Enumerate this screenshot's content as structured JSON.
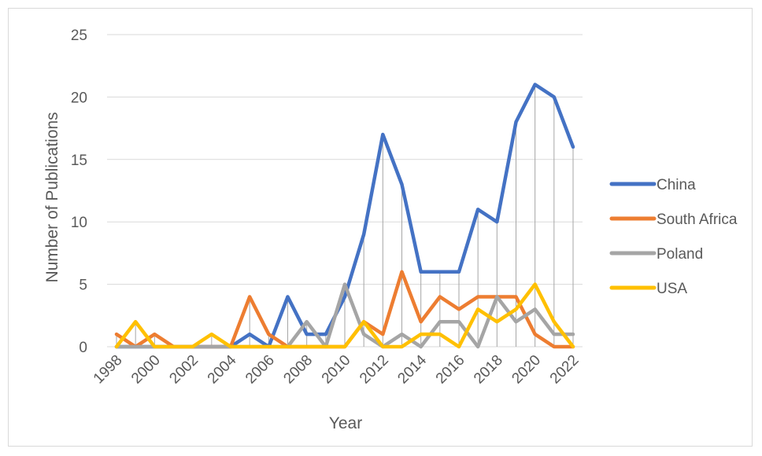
{
  "chart_data": {
    "type": "line",
    "title": "",
    "xlabel": "Year",
    "ylabel": "Number of Publications",
    "ylim": [
      0,
      25
    ],
    "yticks": [
      0,
      5,
      10,
      15,
      20,
      25
    ],
    "x": [
      1998,
      1999,
      2000,
      2001,
      2002,
      2003,
      2004,
      2005,
      2006,
      2007,
      2008,
      2009,
      2010,
      2011,
      2012,
      2013,
      2014,
      2015,
      2016,
      2017,
      2018,
      2019,
      2020,
      2021,
      2022
    ],
    "xtick_labels": [
      "1998",
      "2000",
      "2002",
      "2004",
      "2006",
      "2008",
      "2010",
      "2012",
      "2014",
      "2016",
      "2018",
      "2020",
      "2022"
    ],
    "grid": "horizontal",
    "drop_lines": true,
    "legend_position": "right",
    "series": [
      {
        "name": "China",
        "color": "#4472C4",
        "values": [
          0,
          0,
          0,
          0,
          0,
          0,
          0,
          1,
          0,
          4,
          1,
          1,
          4,
          9,
          17,
          13,
          6,
          6,
          6,
          11,
          10,
          18,
          21,
          20,
          16
        ]
      },
      {
        "name": "South Africa",
        "color": "#ED7D31",
        "values": [
          1,
          0,
          1,
          0,
          0,
          0,
          0,
          4,
          1,
          0,
          0,
          0,
          0,
          2,
          1,
          6,
          2,
          4,
          3,
          4,
          4,
          4,
          1,
          0,
          0
        ]
      },
      {
        "name": "Poland",
        "color": "#A5A5A5",
        "values": [
          0,
          0,
          0,
          0,
          0,
          0,
          0,
          0,
          0,
          0,
          2,
          0,
          5,
          1,
          0,
          1,
          0,
          2,
          2,
          0,
          4,
          2,
          3,
          1,
          1
        ]
      },
      {
        "name": "USA",
        "color": "#FFC000",
        "values": [
          0,
          2,
          0,
          0,
          0,
          1,
          0,
          0,
          0,
          0,
          0,
          0,
          0,
          2,
          0,
          0,
          1,
          1,
          0,
          3,
          2,
          3,
          5,
          2,
          0
        ]
      }
    ]
  }
}
